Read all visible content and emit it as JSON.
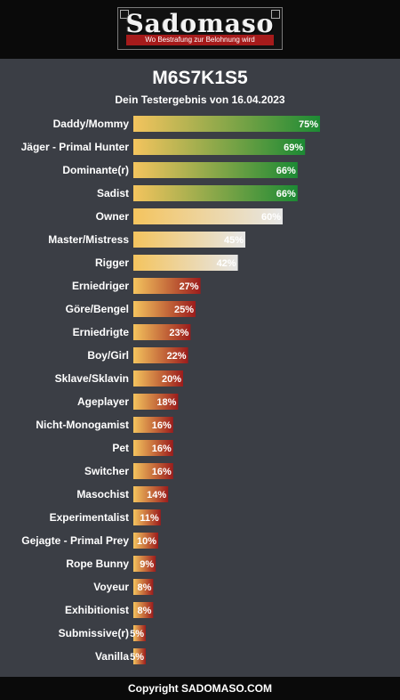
{
  "header": {
    "logo_text": "Sadomaso",
    "tagline": "Wo Bestrafung zur Belohnung wird"
  },
  "title": "M6S7K1S5",
  "subtitle": "Dein Testergebnis von 16.04.2023",
  "footer": "Copyright SADOMASO.COM",
  "colors": {
    "background": "#3b3e45",
    "header_bg": "#0a0a0a",
    "bar_start": "#f4c45e",
    "green_end": "#1c8a34",
    "white_end": "#e6e6e6",
    "red_end": "#9c1c1c"
  },
  "chart_data": {
    "type": "bar",
    "orientation": "horizontal",
    "value_unit": "%",
    "xlim": [
      0,
      100
    ],
    "grid": false,
    "categories": [
      "Daddy/Mommy",
      "Jäger - Primal Hunter",
      "Dominante(r)",
      "Sadist",
      "Owner",
      "Master/Mistress",
      "Rigger",
      "Erniedriger",
      "Göre/Bengel",
      "Erniedrigte",
      "Boy/Girl",
      "Sklave/Sklavin",
      "Ageplayer",
      "Nicht-Monogamist",
      "Pet",
      "Switcher",
      "Masochist",
      "Experimentalist",
      "Gejagte - Primal Prey",
      "Rope Bunny",
      "Voyeur",
      "Exhibitionist",
      "Submissive(r)",
      "Vanilla"
    ],
    "values": [
      75,
      69,
      66,
      66,
      60,
      45,
      42,
      27,
      25,
      23,
      22,
      20,
      18,
      16,
      16,
      16,
      14,
      11,
      10,
      9,
      8,
      8,
      5,
      5
    ],
    "bar_color_groups": [
      "green",
      "green",
      "green",
      "green",
      "white",
      "white",
      "white",
      "red",
      "red",
      "red",
      "red",
      "red",
      "red",
      "red",
      "red",
      "red",
      "red",
      "red",
      "red",
      "red",
      "red",
      "red",
      "red",
      "red"
    ]
  }
}
